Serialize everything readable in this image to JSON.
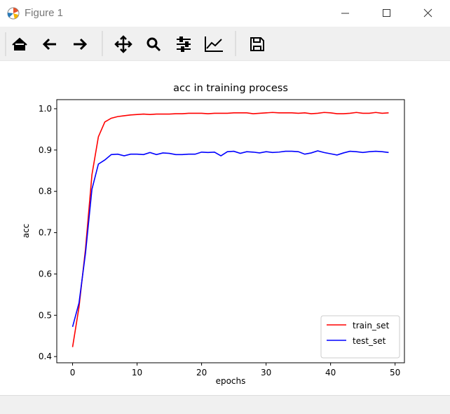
{
  "window": {
    "title": "Figure 1"
  },
  "chart_data": {
    "type": "line",
    "title": "acc in training process",
    "xlabel": "epochs",
    "ylabel": "acc",
    "x": [
      0,
      1,
      2,
      3,
      4,
      5,
      6,
      7,
      8,
      9,
      10,
      11,
      12,
      13,
      14,
      15,
      16,
      17,
      18,
      19,
      20,
      21,
      22,
      23,
      24,
      25,
      26,
      27,
      28,
      29,
      30,
      31,
      32,
      33,
      34,
      35,
      36,
      37,
      38,
      39,
      40,
      41,
      42,
      43,
      44,
      45,
      46,
      47,
      48,
      49
    ],
    "series": [
      {
        "name": "train_set",
        "color": "#ff0000",
        "values": [
          0.423,
          0.52,
          0.66,
          0.84,
          0.932,
          0.968,
          0.977,
          0.981,
          0.983,
          0.985,
          0.986,
          0.987,
          0.986,
          0.987,
          0.987,
          0.987,
          0.988,
          0.988,
          0.989,
          0.989,
          0.989,
          0.988,
          0.989,
          0.989,
          0.989,
          0.99,
          0.99,
          0.99,
          0.988,
          0.989,
          0.99,
          0.991,
          0.99,
          0.99,
          0.99,
          0.989,
          0.99,
          0.988,
          0.989,
          0.991,
          0.99,
          0.988,
          0.988,
          0.989,
          0.991,
          0.989,
          0.989,
          0.991,
          0.989,
          0.99
        ]
      },
      {
        "name": "test_set",
        "color": "#0000ff",
        "values": [
          0.472,
          0.53,
          0.65,
          0.805,
          0.866,
          0.876,
          0.889,
          0.89,
          0.886,
          0.89,
          0.89,
          0.889,
          0.894,
          0.889,
          0.893,
          0.892,
          0.889,
          0.889,
          0.89,
          0.89,
          0.895,
          0.894,
          0.895,
          0.886,
          0.896,
          0.897,
          0.892,
          0.896,
          0.895,
          0.893,
          0.896,
          0.894,
          0.895,
          0.897,
          0.897,
          0.896,
          0.89,
          0.893,
          0.898,
          0.894,
          0.891,
          0.888,
          0.893,
          0.897,
          0.896,
          0.894,
          0.896,
          0.897,
          0.896,
          0.894
        ]
      }
    ],
    "xlim": [
      -2.45,
      51.45
    ],
    "xticks": [
      0,
      10,
      20,
      30,
      40,
      50
    ],
    "ylim": [
      0.385,
      1.022
    ],
    "yticks": [
      0.4,
      0.5,
      0.6,
      0.7,
      0.8,
      0.9,
      {
        "value": 1.0,
        "label": "1.0"
      }
    ],
    "legend": "lower right",
    "grid": false
  }
}
